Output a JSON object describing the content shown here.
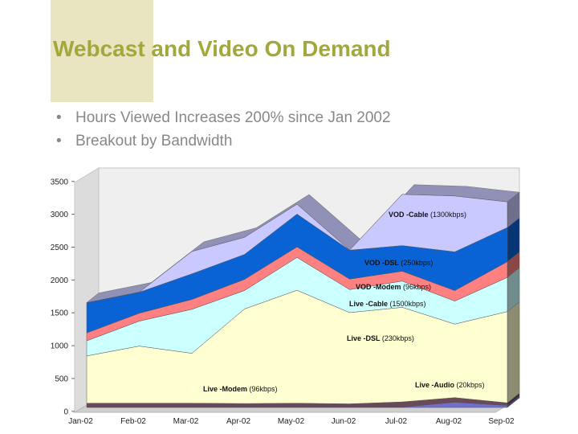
{
  "slide": {
    "title": "Webcast and Video On Demand",
    "bullets": [
      "Hours Viewed Increases 200% since Jan 2002",
      "Breakout by Bandwidth"
    ],
    "bullet_glyph": "•"
  },
  "colors": {
    "title": "#a3a83d",
    "accent_block": "#e8e5c0",
    "bullet_text": "#888888"
  },
  "chart_data": {
    "type": "area",
    "stacked": true,
    "style": "3d",
    "categories": [
      "Jan-02",
      "Feb-02",
      "Mar-02",
      "Apr-02",
      "May-02",
      "Jun-02",
      "Jul-02",
      "Aug-02",
      "Sep-02"
    ],
    "ylim": [
      0,
      3500
    ],
    "yticks": [
      0,
      500,
      1000,
      1500,
      2000,
      2500,
      3000,
      3500
    ],
    "grid": false,
    "legend": "none",
    "series": [
      {
        "name": "Live -Audio",
        "detail": "(20kbps)",
        "color": "#7070cc",
        "values": [
          5,
          5,
          5,
          5,
          5,
          5,
          5,
          80,
          30
        ]
      },
      {
        "name": "Live -Modem",
        "detail": "(96kbps)",
        "color": "#6a4a5a",
        "values": [
          60,
          60,
          60,
          55,
          60,
          50,
          80,
          70,
          40
        ]
      },
      {
        "name": "Live -DSL",
        "detail": "(230kbps)",
        "color": "#fffed0",
        "values": [
          720,
          870,
          760,
          1440,
          1720,
          1390,
          1440,
          1120,
          1390
        ]
      },
      {
        "name": "Live -Cable",
        "detail": "(1500kbps)",
        "color": "#ccffff",
        "values": [
          230,
          380,
          670,
          280,
          500,
          350,
          400,
          350,
          520
        ]
      },
      {
        "name": "VOD -Modem",
        "detail": "(96kbps)",
        "color": "#ff8080",
        "values": [
          120,
          120,
          150,
          170,
          160,
          160,
          150,
          160,
          240
        ]
      },
      {
        "name": "VOD -DSL",
        "detail": "(250kbps)",
        "color": "#0a63d4",
        "values": [
          460,
          320,
          390,
          380,
          500,
          440,
          390,
          590,
          520
        ]
      },
      {
        "name": "VOD -Cable",
        "detail": "(1300kbps)",
        "color": "#c9c9ff",
        "values": [
          0,
          0,
          340,
          260,
          150,
          0,
          780,
          850,
          390
        ]
      }
    ]
  }
}
